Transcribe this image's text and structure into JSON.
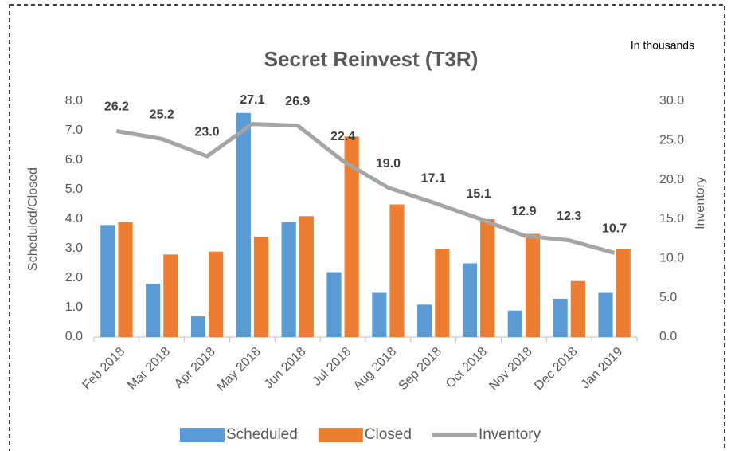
{
  "chart_data": {
    "type": "combo",
    "title": "Secret Reinvest (T3R)",
    "annotation": "In thousands",
    "y_label": "Scheduled/Closed",
    "y2_label": "Inventory",
    "categories": [
      "Feb 2018",
      "Mar 2018",
      "Apr 2018",
      "May 2018",
      "Jun 2018",
      "Jul 2018",
      "Aug 2018",
      "Sep 2018",
      "Oct 2018",
      "Nov 2018",
      "Dec 2018",
      "Jan 2019"
    ],
    "series": [
      {
        "name": "Scheduled",
        "type": "bar",
        "color": "#5b9bd5",
        "values": [
          3.8,
          1.8,
          0.7,
          7.6,
          3.9,
          2.2,
          1.5,
          1.1,
          2.5,
          0.9,
          1.3,
          1.5
        ]
      },
      {
        "name": "Closed",
        "type": "bar",
        "color": "#ed7d31",
        "values": [
          3.9,
          2.8,
          2.9,
          3.4,
          4.1,
          6.8,
          4.5,
          3.0,
          4.0,
          3.5,
          1.9,
          3.0
        ]
      },
      {
        "name": "Inventory",
        "type": "line",
        "axis": "y2",
        "color": "#a5a5a5",
        "values": [
          26.2,
          25.2,
          23.0,
          27.1,
          26.9,
          22.4,
          19.0,
          17.1,
          15.1,
          12.9,
          12.3,
          10.7
        ],
        "value_labels": [
          "26.2",
          "25.2",
          "23.0",
          "27.1",
          "26.9",
          "22.4",
          "19.0",
          "17.1",
          "15.1",
          "12.9",
          "12.3",
          "10.7"
        ]
      }
    ],
    "ylim": [
      0,
      8
    ],
    "yticks": [
      {
        "value": 0,
        "label": "0.0"
      },
      {
        "value": 1,
        "label": "1.0"
      },
      {
        "value": 2,
        "label": "2.0"
      },
      {
        "value": 3,
        "label": "3.0"
      },
      {
        "value": 4,
        "label": "4.0"
      },
      {
        "value": 5,
        "label": "5.0"
      },
      {
        "value": 6,
        "label": "6.0"
      },
      {
        "value": 7,
        "label": "7.0"
      },
      {
        "value": 8,
        "label": "8.0"
      }
    ],
    "y2lim": [
      0,
      30
    ],
    "y2ticks": [
      {
        "value": 0,
        "label": "0.0"
      },
      {
        "value": 5,
        "label": "5.0"
      },
      {
        "value": 10,
        "label": "10.0"
      },
      {
        "value": 15,
        "label": "15.0"
      },
      {
        "value": 20,
        "label": "20.0"
      },
      {
        "value": 25,
        "label": "25.0"
      },
      {
        "value": 30,
        "label": "30.0"
      }
    ],
    "grid": false,
    "legend": "bottom"
  }
}
